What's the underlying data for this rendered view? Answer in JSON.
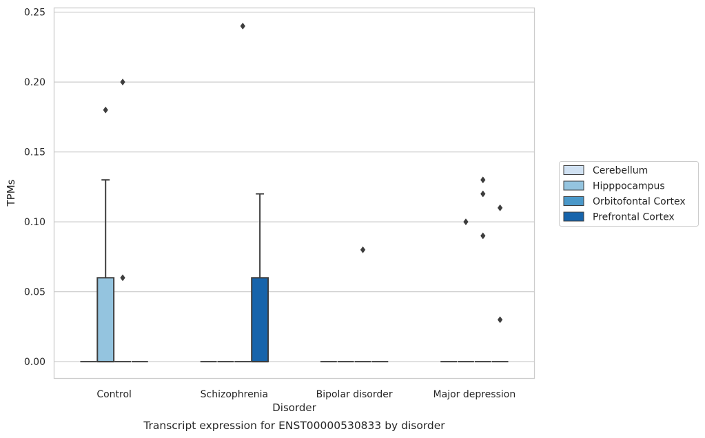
{
  "chart_data": {
    "type": "box",
    "title": "",
    "caption": "Transcript expression for ENST00000530833 by disorder",
    "xlabel": "Disorder",
    "ylabel": "TPMs",
    "ylim": [
      -0.012,
      0.253
    ],
    "yticks": [
      0.0,
      0.05,
      0.1,
      0.15,
      0.2,
      0.25
    ],
    "ytick_labels": [
      "0.00",
      "0.05",
      "0.10",
      "0.15",
      "0.20",
      "0.25"
    ],
    "grid": true,
    "legend_position": "right",
    "categories": [
      "Control",
      "Schizophrenia",
      "Bipolar disorder",
      "Major depression"
    ],
    "series": [
      {
        "name": "Cerebellum",
        "color": "#d0e1f2",
        "boxes": [
          {
            "q1": 0,
            "median": 0,
            "q3": 0,
            "whisker_low": 0,
            "whisker_high": 0,
            "outliers": []
          },
          {
            "q1": 0,
            "median": 0,
            "q3": 0,
            "whisker_low": 0,
            "whisker_high": 0,
            "outliers": []
          },
          {
            "q1": 0,
            "median": 0,
            "q3": 0,
            "whisker_low": 0,
            "whisker_high": 0,
            "outliers": []
          },
          {
            "q1": 0,
            "median": 0,
            "q3": 0,
            "whisker_low": 0,
            "whisker_high": 0,
            "outliers": []
          }
        ]
      },
      {
        "name": "Hipppocampus",
        "color": "#94c4df",
        "boxes": [
          {
            "q1": 0,
            "median": 0,
            "q3": 0.06,
            "whisker_low": 0,
            "whisker_high": 0.13,
            "outliers": [
              0.18
            ]
          },
          {
            "q1": 0,
            "median": 0,
            "q3": 0,
            "whisker_low": 0,
            "whisker_high": 0,
            "outliers": []
          },
          {
            "q1": 0,
            "median": 0,
            "q3": 0,
            "whisker_low": 0,
            "whisker_high": 0,
            "outliers": []
          },
          {
            "q1": 0,
            "median": 0,
            "q3": 0,
            "whisker_low": 0,
            "whisker_high": 0,
            "outliers": [
              0.1
            ]
          }
        ]
      },
      {
        "name": "Orbitofontal Cortex",
        "color": "#4a98c9",
        "boxes": [
          {
            "q1": 0,
            "median": 0,
            "q3": 0,
            "whisker_low": 0,
            "whisker_high": 0,
            "outliers": [
              0.06,
              0.2
            ]
          },
          {
            "q1": 0,
            "median": 0,
            "q3": 0,
            "whisker_low": 0,
            "whisker_high": 0,
            "outliers": [
              0.24
            ]
          },
          {
            "q1": 0,
            "median": 0,
            "q3": 0,
            "whisker_low": 0,
            "whisker_high": 0,
            "outliers": [
              0.08
            ]
          },
          {
            "q1": 0,
            "median": 0,
            "q3": 0,
            "whisker_low": 0,
            "whisker_high": 0,
            "outliers": [
              0.13,
              0.12,
              0.09
            ]
          }
        ]
      },
      {
        "name": "Prefrontal Cortex",
        "color": "#1764ab",
        "boxes": [
          {
            "q1": 0,
            "median": 0,
            "q3": 0,
            "whisker_low": 0,
            "whisker_high": 0,
            "outliers": []
          },
          {
            "q1": 0,
            "median": 0,
            "q3": 0.06,
            "whisker_low": 0,
            "whisker_high": 0.12,
            "outliers": []
          },
          {
            "q1": 0,
            "median": 0,
            "q3": 0,
            "whisker_low": 0,
            "whisker_high": 0,
            "outliers": []
          },
          {
            "q1": 0,
            "median": 0,
            "q3": 0,
            "whisker_low": 0,
            "whisker_high": 0,
            "outliers": [
              0.03,
              0.11
            ]
          }
        ]
      }
    ]
  }
}
